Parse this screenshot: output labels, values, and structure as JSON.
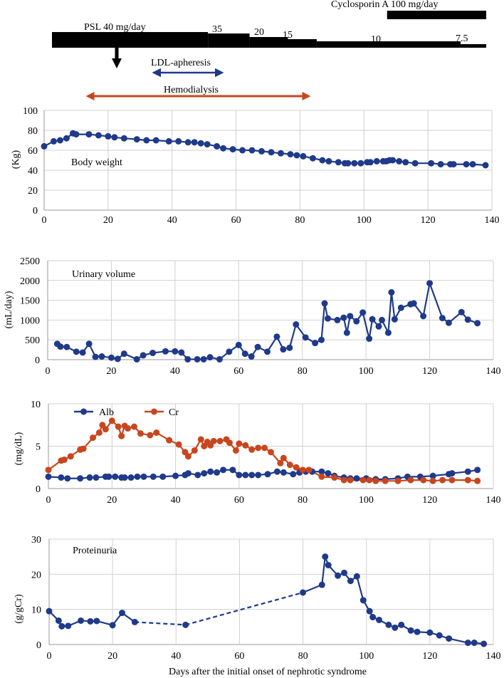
{
  "colors": {
    "navy": "#1f3a8a",
    "orange": "#c8461e",
    "black": "#000000",
    "grid": "#d0d0d0",
    "axis": "#999999"
  },
  "timeline": {
    "cyclosporin_label": "Cyclosporin A 100 mg/day",
    "psl_label": "PSL 40 mg/day",
    "dose_labels": [
      "35",
      "20",
      "15",
      "10",
      "7.5"
    ],
    "ldl_label": "LDL-apheresis",
    "hd_label": "Hemodialysis",
    "psl_segments": [
      {
        "start": 0,
        "end": 49,
        "dose": 40
      },
      {
        "start": 49,
        "end": 62,
        "dose": 35
      },
      {
        "start": 62,
        "end": 74,
        "dose": 20
      },
      {
        "start": 74,
        "end": 83,
        "dose": 15
      },
      {
        "start": 83,
        "end": 128,
        "dose": 10
      },
      {
        "start": 128,
        "end": 136,
        "dose": 7.5
      }
    ],
    "cyclosporin_period": [
      105,
      136
    ],
    "arrow_day": 23,
    "ldl_period": [
      34,
      56
    ],
    "hd_period": [
      14,
      83
    ]
  },
  "x_axis_title": "Days after the initial onset of nephrotic syndrome",
  "chart_data": [
    {
      "type": "line",
      "title": "Body weight",
      "ylabel": "(Kg)",
      "xlim": [
        0,
        140
      ],
      "ylim": [
        0,
        100
      ],
      "xticks": [
        "0",
        "20",
        "40",
        "60",
        "80",
        "100",
        "120",
        "140"
      ],
      "yticks": [
        "0",
        "20",
        "40",
        "60",
        "80",
        "100"
      ],
      "series": [
        {
          "name": "Body weight",
          "color": "#1f3a8a",
          "x": [
            0,
            3,
            5,
            7,
            9,
            10,
            14,
            17,
            20,
            22,
            25,
            29,
            32,
            35,
            39,
            42,
            45,
            47,
            49,
            51,
            54,
            56,
            59,
            62,
            65,
            68,
            71,
            74,
            77,
            79,
            81,
            84,
            87,
            89,
            92,
            94,
            95,
            97,
            99,
            101,
            102,
            104,
            106,
            107,
            108,
            109,
            111,
            113,
            116,
            121,
            124,
            127,
            128,
            132,
            134,
            138
          ],
          "values": [
            64,
            69,
            70,
            72,
            77,
            76,
            76,
            75,
            74,
            73,
            72,
            71,
            70,
            70,
            69,
            69,
            68,
            68,
            67,
            66,
            64,
            62,
            61,
            60,
            60,
            59,
            58,
            57,
            56,
            55,
            54,
            52,
            50,
            49,
            48,
            47,
            47,
            47,
            47,
            48,
            48,
            49,
            49,
            49,
            50,
            50,
            49,
            48,
            47,
            47,
            46,
            46,
            46,
            46,
            46,
            45
          ]
        }
      ]
    },
    {
      "type": "line",
      "title": "Urinary volume",
      "ylabel": "(mL/day)",
      "xlim": [
        0,
        140
      ],
      "ylim": [
        0,
        2500
      ],
      "xticks": [
        "0",
        "20",
        "40",
        "60",
        "80",
        "100",
        "120",
        "140"
      ],
      "yticks": [
        "0",
        "500",
        "1000",
        "1500",
        "2000",
        "2500"
      ],
      "series": [
        {
          "name": "Urinary volume",
          "color": "#1f3a8a",
          "x": [
            3,
            4,
            6,
            9,
            11,
            13,
            15,
            17,
            20,
            22,
            24,
            28,
            30,
            33,
            37,
            40,
            42,
            44,
            47,
            49,
            51,
            54,
            57,
            60,
            62,
            64,
            66,
            69,
            72,
            74,
            76,
            78,
            81,
            84,
            86,
            87,
            88,
            91,
            93,
            94,
            95,
            97,
            99,
            101,
            102,
            104,
            105,
            107,
            108,
            109,
            111,
            114,
            115,
            118,
            120,
            124,
            126,
            130,
            132,
            135
          ],
          "values": [
            400,
            330,
            320,
            200,
            180,
            400,
            70,
            80,
            50,
            20,
            150,
            10,
            110,
            170,
            210,
            210,
            180,
            10,
            10,
            10,
            60,
            10,
            200,
            370,
            150,
            80,
            320,
            200,
            580,
            260,
            300,
            890,
            560,
            420,
            500,
            1420,
            1040,
            1000,
            1060,
            680,
            1100,
            970,
            1190,
            530,
            1020,
            840,
            1000,
            680,
            1700,
            1020,
            1310,
            1400,
            1420,
            1100,
            1930,
            1050,
            930,
            1200,
            1010,
            920
          ]
        }
      ]
    },
    {
      "type": "line",
      "title": "",
      "ylabel": "(mg/dL)",
      "xlim": [
        0,
        140
      ],
      "ylim": [
        0,
        10
      ],
      "xticks": [
        "0",
        "20",
        "40",
        "60",
        "80",
        "100",
        "120",
        "140"
      ],
      "yticks": [
        "0",
        "5",
        "10"
      ],
      "legend": [
        "Alb",
        "Cr"
      ],
      "series": [
        {
          "name": "Alb",
          "color": "#1f3a8a",
          "x": [
            0,
            4,
            6,
            10,
            13,
            15,
            18,
            19,
            21,
            23,
            24,
            26,
            28,
            30,
            33,
            36,
            40,
            43,
            44,
            47,
            49,
            51,
            53,
            55,
            58,
            60,
            62,
            64,
            66,
            69,
            72,
            74,
            77,
            79,
            81,
            83,
            86,
            88,
            90,
            93,
            95,
            97,
            100,
            103,
            106,
            110,
            113,
            117,
            121,
            126,
            127,
            132,
            135
          ],
          "values": [
            1.4,
            1.3,
            1.2,
            1.2,
            1.3,
            1.3,
            1.4,
            1.4,
            1.4,
            1.3,
            1.3,
            1.3,
            1.4,
            1.4,
            1.4,
            1.4,
            1.5,
            1.6,
            1.8,
            1.6,
            1.8,
            2.0,
            1.9,
            2.2,
            2.2,
            1.6,
            1.6,
            1.6,
            1.6,
            1.7,
            2.0,
            1.9,
            1.7,
            1.9,
            2.0,
            2.0,
            2.0,
            1.8,
            1.5,
            1.3,
            1.2,
            1.2,
            1.2,
            1.1,
            1.1,
            1.2,
            1.4,
            1.4,
            1.5,
            1.7,
            1.8,
            2.0,
            2.2
          ]
        },
        {
          "name": "Cr",
          "color": "#c8461e",
          "x": [
            0,
            4,
            5,
            7,
            10,
            11,
            14,
            16,
            17,
            18,
            20,
            22,
            23,
            24,
            25,
            27,
            29,
            32,
            34,
            38,
            41,
            43,
            44,
            46,
            48,
            49,
            50,
            51,
            52,
            54,
            56,
            57,
            59,
            60,
            62,
            64,
            66,
            68,
            70,
            73,
            74,
            76,
            78,
            80,
            82,
            86,
            90,
            93,
            95,
            99,
            101,
            103,
            106,
            110,
            114,
            118,
            121,
            124,
            127,
            132,
            135
          ],
          "values": [
            2.2,
            3.3,
            3.4,
            3.8,
            4.6,
            4.7,
            6.0,
            6.6,
            7.5,
            7.0,
            8.0,
            7.3,
            6.2,
            7.4,
            7.1,
            7.3,
            6.5,
            6.3,
            6.6,
            5.7,
            5.2,
            4.3,
            3.8,
            4.5,
            5.8,
            5.0,
            5.5,
            5.1,
            5.6,
            5.6,
            5.8,
            5.4,
            4.5,
            5.3,
            5.1,
            4.6,
            4.8,
            4.8,
            4.3,
            3.0,
            3.6,
            2.8,
            2.5,
            2.2,
            2.2,
            1.4,
            1.3,
            1.0,
            1.0,
            1.0,
            1.0,
            0.9,
            0.9,
            0.9,
            1.0,
            1.0,
            0.9,
            1.0,
            1.0,
            1.0,
            0.9
          ]
        }
      ]
    },
    {
      "type": "line",
      "title": "Proteinuria",
      "ylabel": "(g/gCr)",
      "xlabel": "Days after the initial onset of nephrotic syndrome",
      "xlim": [
        0,
        140
      ],
      "ylim": [
        0,
        30
      ],
      "xticks": [
        "0",
        "20",
        "40",
        "60",
        "80",
        "100",
        "120",
        "140"
      ],
      "yticks": [
        "0",
        "10",
        "20",
        "30"
      ],
      "series": [
        {
          "name": "Proteinuria",
          "color": "#1f3a8a",
          "x": [
            0,
            3,
            4,
            6,
            10,
            13,
            15,
            20,
            23,
            27,
            43,
            80,
            86,
            87,
            88,
            91,
            93,
            95,
            97,
            99,
            101,
            102,
            104,
            107,
            109,
            111,
            114,
            116,
            120,
            123,
            126,
            132,
            134,
            137
          ],
          "values": [
            9.5,
            6.8,
            5.2,
            5.3,
            6.8,
            6.6,
            6.7,
            5.5,
            9.0,
            6.4,
            5.6,
            14.8,
            17.0,
            25.0,
            22.6,
            19.6,
            20.4,
            18.1,
            19.4,
            12.6,
            9.5,
            7.8,
            7.0,
            5.6,
            4.8,
            5.6,
            4.0,
            3.6,
            3.4,
            2.6,
            1.7,
            0.5,
            0.5,
            0.2
          ],
          "dashed_segments": [
            [
              27,
              43
            ],
            [
              43,
              80
            ]
          ]
        }
      ]
    }
  ]
}
